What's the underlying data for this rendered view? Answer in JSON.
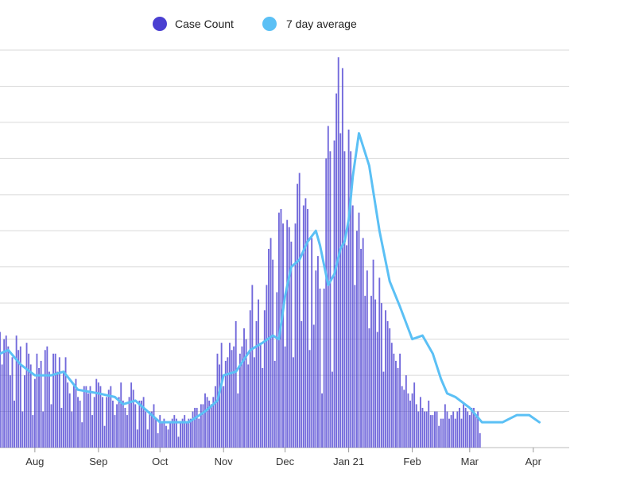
{
  "chart_data": {
    "type": "bar",
    "title": "",
    "xlabel": "",
    "ylabel": "",
    "ylim": [
      0,
      11
    ],
    "grid": true,
    "legend": [
      {
        "label": "Case Count",
        "color": "#4a3fd1",
        "kind": "bar"
      },
      {
        "label": "7 day average",
        "color": "#5bc0f5",
        "kind": "line"
      }
    ],
    "x_ticks": [
      "Aug",
      "Sep",
      "Oct",
      "Nov",
      "Dec",
      "Jan 21",
      "Feb",
      "Mar",
      "Apr"
    ],
    "x_tick_days": [
      17,
      48,
      78,
      109,
      139,
      170,
      201,
      229,
      260
    ],
    "x_range_days": [
      0,
      263
    ],
    "daily_counts": [
      3.2,
      2.3,
      3.0,
      3.1,
      2.8,
      2.0,
      2.5,
      1.3,
      3.1,
      2.7,
      2.8,
      1.0,
      2.0,
      2.9,
      2.6,
      2.3,
      0.9,
      1.9,
      2.6,
      2.2,
      2.4,
      1.0,
      2.7,
      2.8,
      2.1,
      1.2,
      2.6,
      2.6,
      2.1,
      2.5,
      1.1,
      2.1,
      2.5,
      1.8,
      1.5,
      1.0,
      1.7,
      1.9,
      1.4,
      1.3,
      0.7,
      1.7,
      1.7,
      1.5,
      1.7,
      0.9,
      1.4,
      1.9,
      1.8,
      1.7,
      1.4,
      0.6,
      1.4,
      1.6,
      1.7,
      1.3,
      0.9,
      1.2,
      1.4,
      1.8,
      1.3,
      1.1,
      0.9,
      1.4,
      1.8,
      1.6,
      1.2,
      0.5,
      1.3,
      1.3,
      1.4,
      1.0,
      0.5,
      1.0,
      1.0,
      1.2,
      0.8,
      0.4,
      0.9,
      0.7,
      0.8,
      0.6,
      0.5,
      0.7,
      0.8,
      0.9,
      0.8,
      0.3,
      0.7,
      0.8,
      0.9,
      0.7,
      0.8,
      0.8,
      1.0,
      1.1,
      1.1,
      0.8,
      1.2,
      1.2,
      1.5,
      1.4,
      1.3,
      1.2,
      1.4,
      1.7,
      2.6,
      2.3,
      2.9,
      1.7,
      2.4,
      2.5,
      2.9,
      2.7,
      2.8,
      3.5,
      1.5,
      2.6,
      2.8,
      3.3,
      3.0,
      2.3,
      3.8,
      4.5,
      2.5,
      3.5,
      4.1,
      2.9,
      2.2,
      3.8,
      4.5,
      5.5,
      5.8,
      5.2,
      2.4,
      4.3,
      6.5,
      6.6,
      6.2,
      2.8,
      6.3,
      6.1,
      5.7,
      2.5,
      6.2,
      7.3,
      7.6,
      3.5,
      6.7,
      6.9,
      6.6,
      2.7,
      5.8,
      3.4,
      4.9,
      5.3,
      4.4,
      1.5,
      4.4,
      8.0,
      8.9,
      8.2,
      2.1,
      8.5,
      9.8,
      10.8,
      8.7,
      10.5,
      8.2,
      5.6,
      8.8,
      8.2,
      6.7,
      4.5,
      6.0,
      6.5,
      5.5,
      5.8,
      4.2,
      4.9,
      3.3,
      4.2,
      5.2,
      4.1,
      3.2,
      4.7,
      4.0,
      2.1,
      3.8,
      3.5,
      3.3,
      2.9,
      2.6,
      2.4,
      2.2,
      2.6,
      1.7,
      1.6,
      2.0,
      1.5,
      1.3,
      1.5,
      1.8,
      1.2,
      1.0,
      1.4,
      1.1,
      1.0,
      1.0,
      1.3,
      0.9,
      0.9,
      1.0,
      1.0,
      0.6,
      0.8,
      0.8,
      1.2,
      1.0,
      0.8,
      0.9,
      1.0,
      0.8,
      1.0,
      1.1,
      0.8,
      1.2,
      1.1,
      1.0,
      0.9,
      1.1,
      1.1,
      0.9,
      1.0,
      0.4
    ],
    "avg_anchor_days": [
      0,
      4,
      10,
      17,
      25,
      31,
      38,
      48,
      56,
      60,
      66,
      72,
      78,
      85,
      92,
      100,
      106,
      109,
      115,
      122,
      128,
      133,
      136,
      139,
      142,
      146,
      150,
      154,
      156,
      160,
      163,
      166,
      168,
      170,
      172,
      175,
      180,
      185,
      190,
      195,
      201,
      206,
      211,
      215,
      218,
      222,
      229,
      235,
      245,
      252,
      258,
      263
    ],
    "avg_anchor_values": [
      2.6,
      2.7,
      2.3,
      2.0,
      2.0,
      2.1,
      1.6,
      1.5,
      1.4,
      1.2,
      1.3,
      1.0,
      0.7,
      0.7,
      0.7,
      1.0,
      1.3,
      2.0,
      2.1,
      2.7,
      2.9,
      3.1,
      3.0,
      4.2,
      5.0,
      5.2,
      5.7,
      6.0,
      5.6,
      4.5,
      4.8,
      5.5,
      5.7,
      6.3,
      7.5,
      8.7,
      7.8,
      6.0,
      4.6,
      3.9,
      3.0,
      3.1,
      2.6,
      1.9,
      1.5,
      1.4,
      1.1,
      0.7,
      0.7,
      0.9,
      0.9,
      0.7
    ]
  }
}
